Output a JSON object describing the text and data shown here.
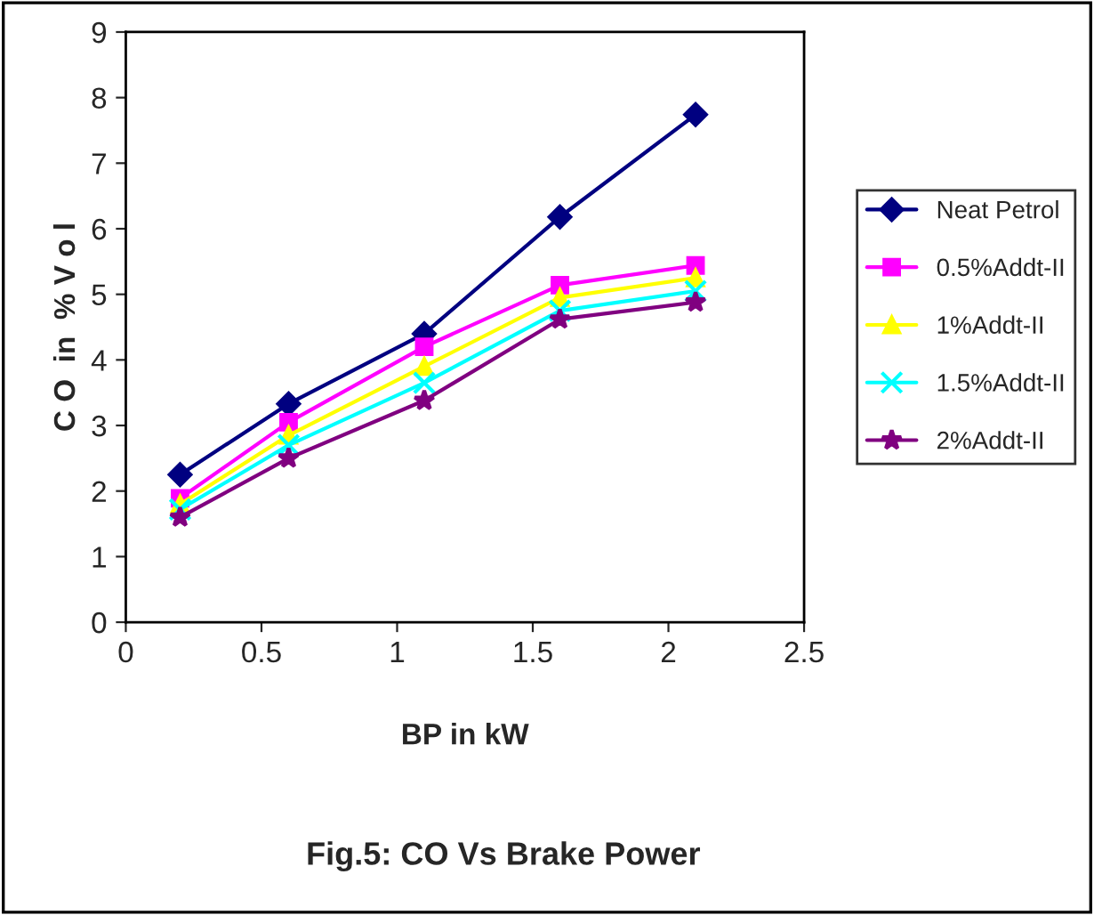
{
  "chart_data": {
    "type": "line",
    "title": "Fig.5: CO Vs Brake Power",
    "xlabel": "BP in kW",
    "ylabel": "C O  in  % V o l",
    "x": [
      0.2,
      0.6,
      1.1,
      1.6,
      2.1
    ],
    "series": [
      {
        "name": "Neat Petrol",
        "color": "#000080",
        "marker": "diamond",
        "values": [
          2.25,
          3.33,
          4.4,
          6.18,
          7.74
        ]
      },
      {
        "name": "0.5%Addt-II",
        "color": "#ff00ff",
        "marker": "square",
        "values": [
          1.89,
          3.05,
          4.2,
          5.14,
          5.44
        ]
      },
      {
        "name": "1%Addt-II",
        "color": "#ffff00",
        "marker": "triangle",
        "values": [
          1.8,
          2.85,
          3.9,
          4.95,
          5.25
        ]
      },
      {
        "name": "1.5%Addt-II",
        "color": "#00ffff",
        "marker": "cross",
        "values": [
          1.72,
          2.7,
          3.65,
          4.75,
          5.05
        ]
      },
      {
        "name": "2%Addt-II",
        "color": "#800080",
        "marker": "star",
        "values": [
          1.6,
          2.5,
          3.38,
          4.62,
          4.88
        ]
      }
    ],
    "xlim": [
      0,
      2.5
    ],
    "xticks": [
      0,
      0.5,
      1,
      1.5,
      2,
      2.5
    ],
    "ylim": [
      0,
      9
    ],
    "yticks": [
      0,
      1,
      2,
      3,
      4,
      5,
      6,
      7,
      8,
      9
    ],
    "grid": false,
    "legend": "right",
    "line_style": "solid"
  }
}
